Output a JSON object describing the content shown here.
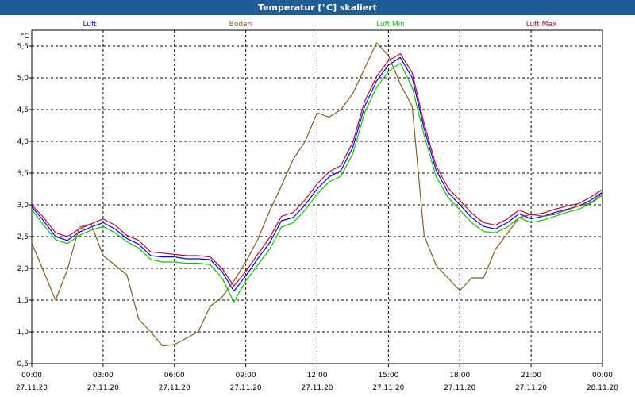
{
  "window": {
    "title": "Temperatur [°C] skaliert"
  },
  "chart_data": {
    "type": "line",
    "title": "Temperatur [°C] skaliert",
    "ylabel": "°C",
    "xlabel": "",
    "ylim": [
      0.5,
      5.75
    ],
    "xlim": [
      0,
      24
    ],
    "grid": true,
    "legend_placement": "top",
    "y_ticks": [
      "0,5",
      "1,0",
      "1,5",
      "2,0",
      "2,5",
      "3,0",
      "3,5",
      "4,0",
      "4,5",
      "5,0",
      "5,5"
    ],
    "y_tick_values": [
      0.5,
      1.0,
      1.5,
      2.0,
      2.5,
      3.0,
      3.5,
      4.0,
      4.5,
      5.0,
      5.5
    ],
    "x_ticks": [
      {
        "hour": 0,
        "time": "00:00",
        "date": "27.11.20"
      },
      {
        "hour": 3,
        "time": "03:00",
        "date": "27.11.20"
      },
      {
        "hour": 6,
        "time": "06:00",
        "date": "27.11.20"
      },
      {
        "hour": 9,
        "time": "09:00",
        "date": "27.11.20"
      },
      {
        "hour": 12,
        "time": "12:00",
        "date": "27.11.20"
      },
      {
        "hour": 15,
        "time": "15:00",
        "date": "27.11.20"
      },
      {
        "hour": 18,
        "time": "18:00",
        "date": "27.11.20"
      },
      {
        "hour": 21,
        "time": "21:00",
        "date": "27.11.20"
      },
      {
        "hour": 24,
        "time": "00:00",
        "date": "28.11.20"
      }
    ],
    "x": [
      0,
      0.5,
      1,
      1.5,
      2,
      2.5,
      3,
      3.5,
      4,
      4.5,
      5,
      5.5,
      6,
      6.5,
      7,
      7.5,
      8,
      8.5,
      9,
      9.5,
      10,
      10.5,
      11,
      11.5,
      12,
      12.5,
      13,
      13.5,
      14,
      14.5,
      15,
      15.5,
      16,
      16.5,
      17,
      17.5,
      18,
      18.5,
      19,
      19.5,
      20,
      20.5,
      21,
      21.5,
      22,
      22.5,
      23,
      23.5,
      24
    ],
    "series": [
      {
        "name": "Luft",
        "color": "#0000ff",
        "values": [
          2.97,
          2.75,
          2.5,
          2.44,
          2.57,
          2.65,
          2.72,
          2.62,
          2.47,
          2.38,
          2.2,
          2.18,
          2.18,
          2.15,
          2.15,
          2.14,
          1.95,
          1.64,
          1.88,
          2.15,
          2.4,
          2.75,
          2.8,
          3.0,
          3.25,
          3.44,
          3.54,
          3.9,
          4.55,
          4.95,
          5.2,
          5.32,
          5.0,
          4.2,
          3.55,
          3.2,
          3.0,
          2.8,
          2.66,
          2.62,
          2.72,
          2.86,
          2.78,
          2.82,
          2.88,
          2.93,
          2.98,
          3.07,
          3.2
        ]
      },
      {
        "name": "Boden",
        "color": "#8b5a1a",
        "values": [
          2.4,
          1.95,
          1.5,
          1.98,
          2.65,
          2.7,
          2.2,
          2.05,
          1.9,
          1.2,
          1.0,
          0.78,
          0.8,
          0.9,
          1.0,
          1.4,
          1.55,
          1.8,
          2.1,
          2.45,
          2.9,
          3.3,
          3.72,
          4.0,
          4.45,
          4.38,
          4.5,
          4.75,
          5.15,
          5.55,
          5.35,
          4.9,
          4.55,
          2.52,
          2.05,
          1.85,
          1.65,
          1.85,
          1.85,
          2.3,
          2.55,
          2.8,
          2.85,
          2.82,
          2.85,
          2.92,
          2.98,
          3.03,
          3.18
        ]
      },
      {
        "name": "Luft Min",
        "color": "#00cc00",
        "values": [
          2.93,
          2.68,
          2.45,
          2.39,
          2.52,
          2.6,
          2.66,
          2.56,
          2.42,
          2.32,
          2.14,
          2.1,
          2.1,
          2.08,
          2.08,
          2.06,
          1.85,
          1.47,
          1.8,
          2.05,
          2.3,
          2.65,
          2.72,
          2.92,
          3.17,
          3.36,
          3.45,
          3.8,
          4.45,
          4.85,
          5.1,
          5.23,
          4.85,
          4.1,
          3.45,
          3.12,
          2.92,
          2.72,
          2.58,
          2.56,
          2.65,
          2.8,
          2.72,
          2.76,
          2.82,
          2.88,
          2.93,
          3.02,
          3.15
        ]
      },
      {
        "name": "Luft Max",
        "color": "#cc0033",
        "values": [
          3.0,
          2.8,
          2.56,
          2.5,
          2.62,
          2.7,
          2.78,
          2.68,
          2.52,
          2.44,
          2.26,
          2.24,
          2.22,
          2.2,
          2.2,
          2.18,
          2.0,
          1.72,
          1.95,
          2.22,
          2.48,
          2.82,
          2.88,
          3.08,
          3.33,
          3.52,
          3.62,
          3.98,
          4.63,
          5.02,
          5.27,
          5.38,
          5.08,
          4.28,
          3.62,
          3.27,
          3.07,
          2.87,
          2.72,
          2.68,
          2.78,
          2.92,
          2.84,
          2.87,
          2.93,
          2.98,
          3.02,
          3.12,
          3.24
        ]
      }
    ]
  }
}
